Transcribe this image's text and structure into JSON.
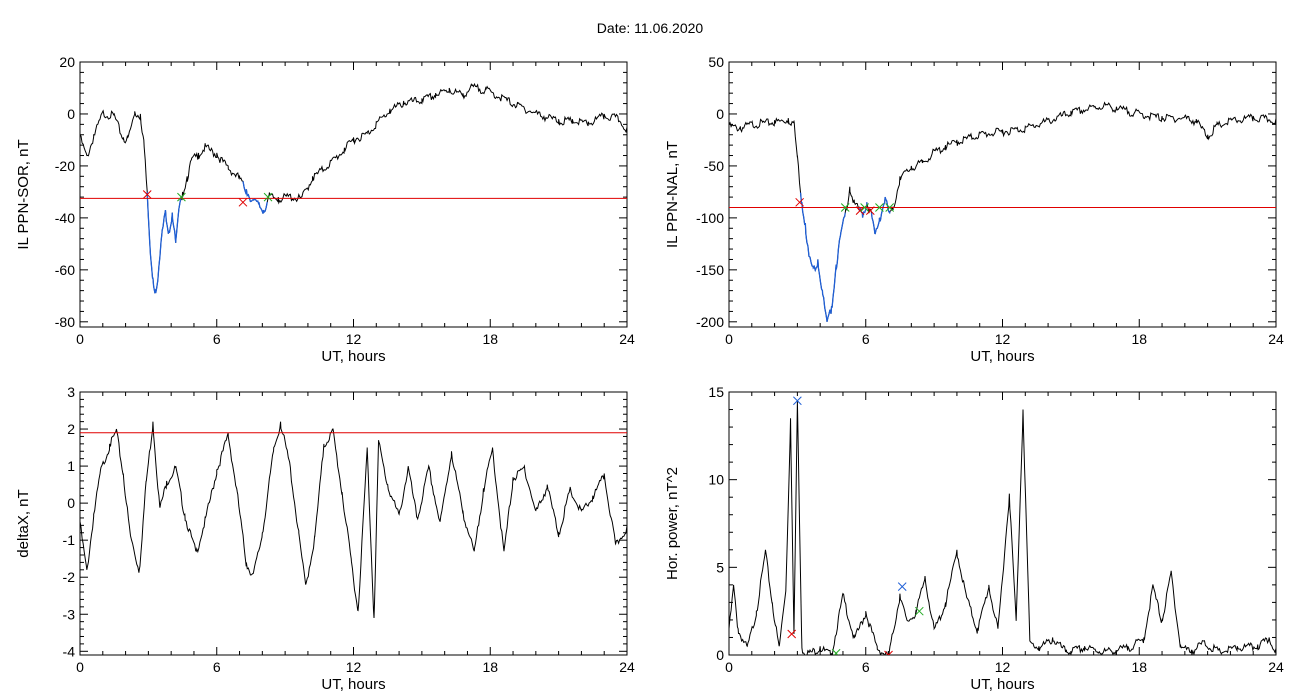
{
  "figure": {
    "date_label": "Date:",
    "date_value": "11.06.2020"
  },
  "colors": {
    "trace": "#000000",
    "threshold": "#e00000",
    "highlight": "#1f5fd6",
    "mark_start": "#e00000",
    "mark_end": "#22aa22",
    "mark_peak": "#1f5fd6"
  },
  "chart_data": [
    {
      "type": "line",
      "id": "sor",
      "xlabel": "UT, hours",
      "ylabel": "IL PPN-SOR, nT",
      "xlim": [
        0,
        24
      ],
      "ylim": [
        -82,
        20
      ],
      "xticks": [
        0,
        6,
        12,
        18,
        24
      ],
      "yticks": [
        20,
        0,
        -20,
        -40,
        -60,
        -80
      ],
      "threshold": -32.5,
      "series_points": [
        [
          0,
          -8
        ],
        [
          0.3,
          -16
        ],
        [
          0.6,
          -8
        ],
        [
          1,
          1
        ],
        [
          1.5,
          0
        ],
        [
          1.9,
          -9
        ],
        [
          2.1,
          -9
        ],
        [
          2.4,
          1
        ],
        [
          2.65,
          0
        ],
        [
          2.8,
          -10
        ],
        [
          2.95,
          -30
        ],
        [
          3.05,
          -48
        ],
        [
          3.2,
          -63
        ],
        [
          3.3,
          -68
        ],
        [
          3.45,
          -60
        ],
        [
          3.6,
          -45
        ],
        [
          3.75,
          -37
        ],
        [
          3.9,
          -45
        ],
        [
          4.05,
          -38
        ],
        [
          4.2,
          -49
        ],
        [
          4.35,
          -36
        ],
        [
          4.5,
          -30
        ],
        [
          4.7,
          -24
        ],
        [
          4.9,
          -17
        ],
        [
          5.2,
          -15
        ],
        [
          5.5,
          -12
        ],
        [
          6,
          -15
        ],
        [
          6.5,
          -20
        ],
        [
          7,
          -24
        ],
        [
          7.3,
          -29
        ],
        [
          7.6,
          -33
        ],
        [
          7.85,
          -34
        ],
        [
          8.05,
          -37
        ],
        [
          8.3,
          -31
        ],
        [
          8.7,
          -32
        ],
        [
          9.2,
          -31
        ],
        [
          9.7,
          -32
        ],
        [
          10.2,
          -24
        ],
        [
          11,
          -18
        ],
        [
          11.6,
          -13
        ],
        [
          12,
          -9
        ],
        [
          12.6,
          -7
        ],
        [
          13,
          -3
        ],
        [
          13.6,
          2
        ],
        [
          14.2,
          5
        ],
        [
          15,
          6
        ],
        [
          15.6,
          8
        ],
        [
          16.2,
          10
        ],
        [
          16.8,
          8
        ],
        [
          17.2,
          11
        ],
        [
          17.8,
          10
        ],
        [
          18.5,
          7
        ],
        [
          19.2,
          4
        ],
        [
          20,
          1
        ],
        [
          21,
          -2
        ],
        [
          21.6,
          -2
        ],
        [
          22.3,
          -3
        ],
        [
          23,
          0
        ],
        [
          23.6,
          -1
        ],
        [
          24,
          -5
        ]
      ],
      "highlight_ranges": [
        [
          2.95,
          4.45
        ],
        [
          7.15,
          8.25
        ]
      ],
      "markers_start": [
        [
          2.95,
          -31
        ],
        [
          7.15,
          -34
        ]
      ],
      "markers_end": [
        [
          4.45,
          -32
        ],
        [
          8.25,
          -32
        ]
      ]
    },
    {
      "type": "line",
      "id": "nal",
      "xlabel": "UT, hours",
      "ylabel": "IL PPN-NAL, nT",
      "xlim": [
        0,
        24
      ],
      "ylim": [
        -205,
        50
      ],
      "xticks": [
        0,
        6,
        12,
        18,
        24
      ],
      "yticks": [
        50,
        0,
        -50,
        -100,
        -150,
        -200
      ],
      "threshold": -90,
      "series_points": [
        [
          0,
          -10
        ],
        [
          0.5,
          -12
        ],
        [
          1,
          -8
        ],
        [
          1.5,
          -7
        ],
        [
          2,
          -6
        ],
        [
          2.6,
          -4
        ],
        [
          2.85,
          -7
        ],
        [
          3,
          -40
        ],
        [
          3.2,
          -85
        ],
        [
          3.35,
          -105
        ],
        [
          3.5,
          -135
        ],
        [
          3.7,
          -148
        ],
        [
          3.9,
          -140
        ],
        [
          4.1,
          -170
        ],
        [
          4.3,
          -200
        ],
        [
          4.5,
          -185
        ],
        [
          4.7,
          -145
        ],
        [
          4.9,
          -115
        ],
        [
          5.1,
          -95
        ],
        [
          5.3,
          -70
        ],
        [
          5.5,
          -85
        ],
        [
          5.7,
          -90
        ],
        [
          5.85,
          -95
        ],
        [
          6.05,
          -85
        ],
        [
          6.25,
          -95
        ],
        [
          6.4,
          -115
        ],
        [
          6.6,
          -100
        ],
        [
          6.85,
          -80
        ],
        [
          7.05,
          -95
        ],
        [
          7.2,
          -90
        ],
        [
          7.5,
          -60
        ],
        [
          8,
          -50
        ],
        [
          8.5,
          -45
        ],
        [
          9,
          -35
        ],
        [
          9.5,
          -30
        ],
        [
          10,
          -25
        ],
        [
          11,
          -18
        ],
        [
          12,
          -15
        ],
        [
          13,
          -12
        ],
        [
          14,
          -5
        ],
        [
          15,
          3
        ],
        [
          16,
          8
        ],
        [
          16.5,
          10
        ],
        [
          17,
          7
        ],
        [
          18,
          2
        ],
        [
          19,
          -2
        ],
        [
          20,
          -2
        ],
        [
          20.5,
          -5
        ],
        [
          21,
          -20
        ],
        [
          21.4,
          -10
        ],
        [
          22,
          -5
        ],
        [
          23,
          -2
        ],
        [
          24,
          -4
        ]
      ],
      "highlight_ranges": [
        [
          3.1,
          5.1
        ],
        [
          5.7,
          6.05
        ],
        [
          6.25,
          7.1
        ]
      ],
      "markers_start": [
        [
          3.1,
          -85
        ],
        [
          5.75,
          -93
        ],
        [
          6.2,
          -93
        ]
      ],
      "markers_end": [
        [
          5.1,
          -90
        ],
        [
          5.95,
          -90
        ],
        [
          6.6,
          -90
        ],
        [
          7.05,
          -90
        ]
      ]
    },
    {
      "type": "line",
      "id": "deltax",
      "xlabel": "UT, hours",
      "ylabel": "deltaX, nT",
      "xlim": [
        0,
        24
      ],
      "ylim": [
        -4.1,
        3
      ],
      "xticks": [
        0,
        6,
        12,
        18,
        24
      ],
      "yticks": [
        3,
        2,
        1,
        0,
        -1,
        -2,
        -3,
        -4
      ],
      "threshold": 1.9,
      "series_points": [
        [
          0,
          -0.5
        ],
        [
          0.3,
          -1.8
        ],
        [
          0.6,
          -0.3
        ],
        [
          0.9,
          0.9
        ],
        [
          1.3,
          1.6
        ],
        [
          1.6,
          2.0
        ],
        [
          1.9,
          0.8
        ],
        [
          2.2,
          -0.8
        ],
        [
          2.6,
          -1.8
        ],
        [
          2.9,
          0.6
        ],
        [
          3.2,
          2.2
        ],
        [
          3.5,
          -0.1
        ],
        [
          3.8,
          0.6
        ],
        [
          4.2,
          1.0
        ],
        [
          4.6,
          -0.3
        ],
        [
          5.1,
          -1.3
        ],
        [
          5.5,
          -0.4
        ],
        [
          6,
          0.9
        ],
        [
          6.5,
          1.9
        ],
        [
          6.9,
          0.3
        ],
        [
          7.3,
          -1.6
        ],
        [
          7.6,
          -1.9
        ],
        [
          8,
          -0.8
        ],
        [
          8.5,
          1.5
        ],
        [
          8.8,
          2.2
        ],
        [
          9.2,
          1.1
        ],
        [
          9.6,
          -0.8
        ],
        [
          9.9,
          -2.2
        ],
        [
          10.3,
          -0.9
        ],
        [
          10.7,
          1.6
        ],
        [
          11.1,
          2.0
        ],
        [
          11.5,
          0.3
        ],
        [
          11.9,
          -1.5
        ],
        [
          12.2,
          -2.9
        ],
        [
          12.6,
          1.5
        ],
        [
          12.9,
          -3.1
        ],
        [
          13.1,
          1.7
        ],
        [
          13.5,
          0.5
        ],
        [
          14,
          -0.3
        ],
        [
          14.4,
          1.0
        ],
        [
          14.8,
          -0.4
        ],
        [
          15.3,
          1.0
        ],
        [
          15.8,
          -0.5
        ],
        [
          16.3,
          1.4
        ],
        [
          16.8,
          -0.2
        ],
        [
          17.3,
          -1.3
        ],
        [
          17.7,
          0.4
        ],
        [
          18.1,
          1.5
        ],
        [
          18.6,
          -1.3
        ],
        [
          19,
          0.7
        ],
        [
          19.5,
          1.0
        ],
        [
          20,
          -0.2
        ],
        [
          20.5,
          0.5
        ],
        [
          21,
          -0.8
        ],
        [
          21.5,
          0.4
        ],
        [
          22,
          -0.2
        ],
        [
          22.5,
          0.2
        ],
        [
          23,
          0.8
        ],
        [
          23.5,
          -1.1
        ],
        [
          24,
          -0.6
        ]
      ],
      "highlight_ranges": [],
      "markers_start": [],
      "markers_end": []
    },
    {
      "type": "line",
      "id": "power",
      "xlabel": "UT, hours",
      "ylabel": "Hor. power, nT^2",
      "xlim": [
        0,
        24
      ],
      "ylim": [
        0,
        15
      ],
      "xticks": [
        0,
        6,
        12,
        18,
        24
      ],
      "yticks": [
        15,
        10,
        5,
        0
      ],
      "threshold": null,
      "series_points": [
        [
          0,
          1.5
        ],
        [
          0.2,
          4
        ],
        [
          0.4,
          1.5
        ],
        [
          0.8,
          0.5
        ],
        [
          1.2,
          2.5
        ],
        [
          1.6,
          6
        ],
        [
          1.9,
          3
        ],
        [
          2.2,
          0.5
        ],
        [
          2.5,
          4
        ],
        [
          2.7,
          13.5
        ],
        [
          2.85,
          1.2
        ],
        [
          3.0,
          14.5
        ],
        [
          3.2,
          0.4
        ],
        [
          3.5,
          0.2
        ],
        [
          4,
          0.5
        ],
        [
          4.5,
          0.1
        ],
        [
          5,
          3.5
        ],
        [
          5.5,
          1.0
        ],
        [
          6,
          2.5
        ],
        [
          6.5,
          0.5
        ],
        [
          7,
          0
        ],
        [
          7.5,
          3.5
        ],
        [
          7.8,
          2.0
        ],
        [
          8.2,
          2.5
        ],
        [
          8.6,
          4.5
        ],
        [
          9,
          1.5
        ],
        [
          9.5,
          3.0
        ],
        [
          10,
          6.0
        ],
        [
          10.4,
          3.5
        ],
        [
          10.9,
          1.5
        ],
        [
          11.4,
          4.0
        ],
        [
          11.8,
          1.5
        ],
        [
          12.3,
          9.2
        ],
        [
          12.6,
          2.0
        ],
        [
          12.9,
          14.0
        ],
        [
          13.2,
          0.8
        ],
        [
          13.6,
          0.5
        ],
        [
          14.2,
          1.0
        ],
        [
          14.8,
          0.3
        ],
        [
          15.6,
          0.5
        ],
        [
          16.5,
          0.3
        ],
        [
          17.5,
          0.5
        ],
        [
          18.2,
          1.0
        ],
        [
          18.6,
          4.0
        ],
        [
          19,
          2.0
        ],
        [
          19.4,
          4.8
        ],
        [
          19.8,
          0.6
        ],
        [
          20.3,
          0.3
        ],
        [
          20.8,
          0.8
        ],
        [
          21.5,
          0.3
        ],
        [
          22.3,
          0.5
        ],
        [
          23.2,
          0.6
        ],
        [
          23.7,
          1.0
        ],
        [
          24,
          0.4
        ]
      ],
      "highlight_ranges": [],
      "markers_start": [
        [
          2.75,
          1.2
        ],
        [
          7.0,
          0
        ]
      ],
      "markers_end": [
        [
          4.7,
          0.1
        ],
        [
          8.35,
          2.5
        ]
      ],
      "markers_peak": [
        [
          3.0,
          14.5
        ],
        [
          7.6,
          3.9
        ]
      ]
    }
  ]
}
